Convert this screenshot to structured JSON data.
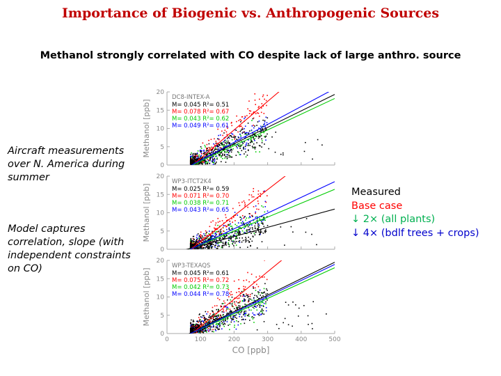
{
  "title": "Importance of Biogenic vs. Anthropogenic Sources",
  "subtitle": "Methanol strongly correlated with CO despite lack of large anthro. source",
  "notes": [
    "Aircraft measurements over N. America during summer",
    "Model captures correlation, slope (with independent constraints on CO)"
  ],
  "legend": [
    {
      "label": "Measured",
      "color": "#000000"
    },
    {
      "label": "Base case",
      "color": "#ff0000"
    },
    {
      "label": "2× (all plants)",
      "color": "#00b050",
      "arrow": "↓"
    },
    {
      "label": "4× (bdlf trees + crops)",
      "color": "#0000cc",
      "arrow": "↓"
    }
  ],
  "colors": {
    "measured": "#000000",
    "base": "#ff0000",
    "x2": "#00cc00",
    "x4": "#0000ff"
  },
  "chart_data": {
    "type": "scatter",
    "xlabel": "CO [ppb]",
    "ylabel": "Methanol [ppb]",
    "xlim": [
      0,
      500
    ],
    "ylim": [
      0,
      20
    ],
    "xticks": [
      0,
      100,
      200,
      300,
      400,
      500
    ],
    "yticks": [
      0,
      5,
      10,
      15,
      20
    ],
    "panels": [
      {
        "name": "DC8-INTEX-A",
        "stats": [
          {
            "series": "measured",
            "slope": "0.045",
            "r2": "0.51"
          },
          {
            "series": "base",
            "slope": "0.078",
            "r2": "0.67"
          },
          {
            "series": "x2",
            "slope": "0.043",
            "r2": "0.62"
          },
          {
            "series": "x4",
            "slope": "0.049",
            "r2": "0.61"
          }
        ],
        "fits": [
          {
            "series": "measured",
            "slope": 0.045,
            "intercept": -3.2
          },
          {
            "series": "base",
            "slope": 0.078,
            "intercept": -6.0
          },
          {
            "series": "x2",
            "slope": 0.043,
            "intercept": -3.3
          },
          {
            "series": "x4",
            "slope": 0.049,
            "intercept": -3.6
          }
        ],
        "spread": 2.2
      },
      {
        "name": "WP3-ITCT2K4",
        "stats": [
          {
            "series": "measured",
            "slope": "0.025",
            "r2": "0.59"
          },
          {
            "series": "base",
            "slope": "0.071",
            "r2": "0.70"
          },
          {
            "series": "x2",
            "slope": "0.038",
            "r2": "0.71"
          },
          {
            "series": "x4",
            "slope": "0.043",
            "r2": "0.65"
          }
        ],
        "fits": [
          {
            "series": "measured",
            "slope": 0.025,
            "intercept": -1.5
          },
          {
            "series": "base",
            "slope": 0.071,
            "intercept": -5.0
          },
          {
            "series": "x2",
            "slope": 0.038,
            "intercept": -2.6
          },
          {
            "series": "x4",
            "slope": 0.043,
            "intercept": -3.0
          }
        ],
        "spread": 2.0
      },
      {
        "name": "WP3-TEXAQS",
        "stats": [
          {
            "series": "measured",
            "slope": "0.045",
            "r2": "0.61"
          },
          {
            "series": "base",
            "slope": "0.075",
            "r2": "0.72"
          },
          {
            "series": "x2",
            "slope": "0.042",
            "r2": "0.73"
          },
          {
            "series": "x4",
            "slope": "0.044",
            "r2": "0.78"
          }
        ],
        "fits": [
          {
            "series": "measured",
            "slope": 0.045,
            "intercept": -3.0
          },
          {
            "series": "base",
            "slope": 0.075,
            "intercept": -5.6
          },
          {
            "series": "x2",
            "slope": 0.042,
            "intercept": -3.0
          },
          {
            "series": "x4",
            "slope": 0.044,
            "intercept": -3.1
          }
        ],
        "spread": 2.3
      }
    ]
  }
}
